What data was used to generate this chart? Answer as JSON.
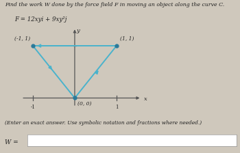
{
  "title_line1": "Find the work W done by the force field F in moving an object along the curve C.",
  "formula_display": "F = 12xyi + 9xy²j",
  "points": {
    "A": [
      -1,
      1
    ],
    "B": [
      1,
      1
    ],
    "C": [
      0,
      0
    ]
  },
  "point_labels": {
    "A": "(-1, 1)",
    "B": "(1, 1)",
    "C": "(0, 0)"
  },
  "curve_color": "#4ab3cc",
  "point_color": "#2a7a9a",
  "axis_color": "#555555",
  "background_color": "#cfc8bc",
  "text_color": "#222222",
  "answer_label": "W =",
  "note": "(Enter an exact answer. Use symbolic notation and fractions where needed.)",
  "xlim": [
    -1.5,
    1.6
  ],
  "ylim": [
    -0.35,
    1.35
  ],
  "xlabel": "x",
  "ylabel": "y",
  "x_ticks": [
    -1,
    1
  ],
  "y_ticks": [
    1
  ]
}
